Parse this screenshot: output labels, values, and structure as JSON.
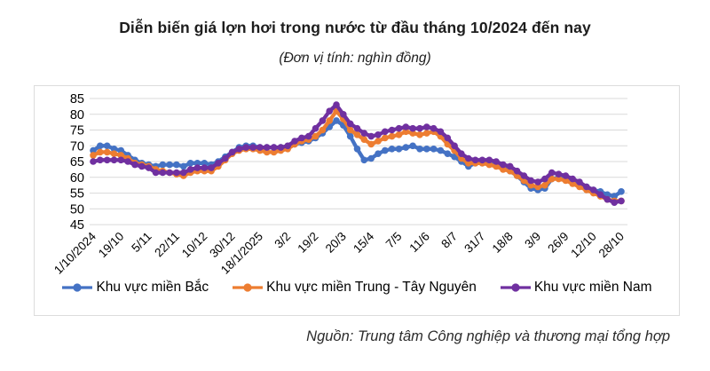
{
  "title": "Diễn biến giá lợn hơi trong nước từ đầu tháng 10/2024 đến nay",
  "subtitle": "(Đơn vị tính: nghìn đồng)",
  "source": "Nguồn: Trung tâm Công nghiệp và thương mại tổng hợp",
  "chart_data": {
    "type": "line",
    "title": "Diễn biến giá lợn hơi trong nước từ đầu tháng 10/2024 đến nay",
    "unit_label": "(Đơn vị tính: nghìn đồng)",
    "ylim": [
      45,
      85
    ],
    "ytick_step": 5,
    "grid": true,
    "legend_position": "bottom",
    "grid_color": "#d9d9d9",
    "x_tick_labels": [
      "1/10/2024",
      "19/10",
      "5/11",
      "22/11",
      "10/12",
      "30/12",
      "18/1/2025",
      "3/2",
      "19/2",
      "20/3",
      "15/4",
      "7/5",
      "11/6",
      "8/7",
      "31/7",
      "18/8",
      "3/9",
      "26/9",
      "12/10",
      "28/10"
    ],
    "points_per_tick": 4,
    "series": [
      {
        "name": "Khu vực miền Bắc",
        "color": "#4472C4",
        "values": [
          68.5,
          70,
          70,
          69,
          68.5,
          67,
          65.5,
          64.5,
          64,
          63.5,
          64,
          64,
          64,
          63.5,
          64.5,
          64.5,
          64.5,
          64,
          65,
          66.5,
          68,
          69.5,
          70,
          70,
          69.5,
          69.5,
          69.5,
          69.5,
          69.5,
          70.5,
          71,
          71.5,
          72.5,
          74,
          76,
          78,
          76.5,
          73,
          69,
          65.5,
          66,
          67.5,
          68.5,
          69,
          69,
          69.5,
          70,
          69,
          69,
          69,
          68.5,
          67.5,
          66.5,
          65,
          63.5,
          64.5,
          64.5,
          64.5,
          64,
          63,
          62,
          60.5,
          58.5,
          56.5,
          56,
          56.5,
          59.5,
          60,
          60,
          59,
          58,
          57,
          56,
          55.5,
          54.5,
          54,
          55.5
        ]
      },
      {
        "name": "Khu vực miền Trung - Tây Nguyên",
        "color": "#ED7D31",
        "values": [
          67,
          68,
          68,
          67.5,
          67,
          66,
          64.5,
          64,
          63.5,
          62.5,
          62,
          61.5,
          61,
          60.5,
          61.5,
          62,
          62,
          62,
          63.5,
          65.5,
          67.5,
          68.5,
          69,
          69,
          68.5,
          68,
          68,
          68.5,
          69,
          70.5,
          71.5,
          72,
          73,
          75,
          78,
          81,
          78.5,
          75,
          73.5,
          72,
          70.5,
          71.5,
          72.5,
          73,
          73.5,
          74.5,
          74,
          73.5,
          74,
          74.5,
          73,
          70.5,
          68.5,
          66,
          64.5,
          64.5,
          64.5,
          64,
          63.5,
          62.5,
          62,
          60.5,
          59,
          57.5,
          57,
          57.5,
          59.5,
          59.5,
          59,
          58,
          57,
          56,
          55,
          54,
          53,
          52.5,
          52.5
        ]
      },
      {
        "name": "Khu vực miền Nam",
        "color": "#7030A0",
        "values": [
          65,
          65.5,
          65.5,
          65.5,
          65.5,
          65,
          64,
          63.5,
          63,
          61.5,
          61.5,
          61.5,
          61.5,
          61.5,
          62.5,
          63,
          63,
          63,
          64.5,
          66,
          68,
          69,
          69.5,
          69.5,
          69.5,
          69.5,
          69.5,
          69.5,
          70,
          71.5,
          72.5,
          73,
          75.5,
          78,
          81,
          83,
          80,
          77,
          75.5,
          74,
          73,
          73.5,
          74.5,
          75,
          75.5,
          76,
          75.5,
          75.5,
          76,
          75.5,
          74.5,
          72.5,
          70,
          67.5,
          66,
          65.5,
          65.5,
          65.5,
          65,
          64,
          63.5,
          62,
          60.5,
          59,
          58.5,
          59.5,
          61.5,
          61,
          60.5,
          59.5,
          58.5,
          57,
          56,
          54.5,
          53,
          52,
          52.5
        ]
      }
    ]
  }
}
